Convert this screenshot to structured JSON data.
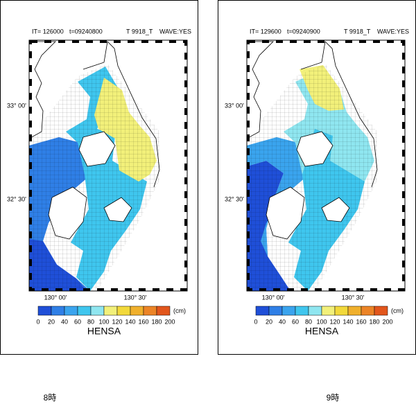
{
  "panels": [
    {
      "it": "IT=  126000",
      "t": "t=09240800",
      "case": "T 9918_T",
      "wave": "WAVE:YES",
      "lat_labels": [
        "33° 00'",
        "32° 30'"
      ],
      "lon_labels": [
        "130° 00'",
        "130° 30'"
      ],
      "unit": "(cm)",
      "colorbar_ticks": [
        0,
        20,
        40,
        60,
        80,
        100,
        120,
        140,
        160,
        180,
        200
      ],
      "colorbar_colors": [
        "#1f4fd8",
        "#2f7fe6",
        "#3aa4ee",
        "#3fc6ee",
        "#8fe6f0",
        "#f2f07a",
        "#f2d93a",
        "#f0b02c",
        "#ec8426",
        "#e2561c"
      ],
      "title": "HENSA",
      "caption": "8時"
    },
    {
      "it": "IT=  129600",
      "t": "t=09240900",
      "case": "T 9918_T",
      "wave": "WAVE:YES",
      "lat_labels": [
        "33° 00'",
        "32° 30'"
      ],
      "lon_labels": [
        "130° 00'",
        "130° 30'"
      ],
      "unit": "(cm)",
      "colorbar_ticks": [
        0,
        20,
        40,
        60,
        80,
        100,
        120,
        140,
        160,
        180,
        200
      ],
      "colorbar_colors": [
        "#1f4fd8",
        "#2f7fe6",
        "#3aa4ee",
        "#3fc6ee",
        "#8fe6f0",
        "#f2f07a",
        "#f2d93a",
        "#f0b02c",
        "#ec8426",
        "#e2561c"
      ],
      "title": "HENSA",
      "caption": "9時"
    }
  ]
}
